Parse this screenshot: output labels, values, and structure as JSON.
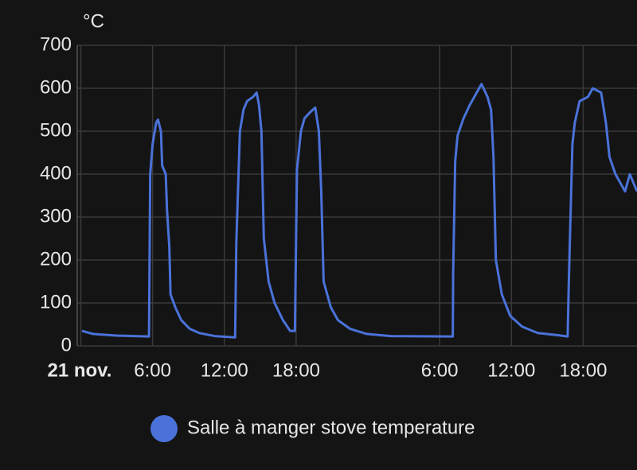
{
  "chart_data": {
    "type": "line",
    "y_label": "°C",
    "xlim": [
      -0.3,
      46.5
    ],
    "ylim": [
      0,
      700
    ],
    "yticks": [
      0,
      100,
      200,
      300,
      400,
      500,
      600,
      700
    ],
    "xticks": [
      {
        "value": 0,
        "label": "21 nov."
      },
      {
        "value": 6,
        "label": "6:00"
      },
      {
        "value": 12,
        "label": "12:00"
      },
      {
        "value": 18,
        "label": "18:00"
      },
      {
        "value": 30,
        "label": "6:00"
      },
      {
        "value": 36,
        "label": "12:00"
      },
      {
        "value": 42,
        "label": "18:00"
      }
    ],
    "grid": true,
    "series": [
      {
        "name": "Salle à manger stove temperature",
        "color": "#4a72d9",
        "x": [
          0.1,
          1,
          3,
          5.7,
          5.8,
          6.0,
          6.3,
          6.45,
          6.7,
          6.8,
          7.1,
          7.2,
          7.4,
          7.5,
          7.9,
          8.4,
          9.1,
          9.9,
          11.2,
          12.9,
          13.0,
          13.3,
          13.6,
          13.9,
          14.4,
          14.7,
          14.9,
          15.1,
          15.3,
          15.7,
          16.2,
          16.9,
          17.5,
          17.9,
          18.07,
          18.4,
          18.7,
          19.2,
          19.6,
          19.9,
          20.1,
          20.3,
          20.9,
          21.5,
          22.5,
          23.9,
          25.9,
          31.1,
          31.13,
          31.3,
          31.5,
          32.0,
          32.5,
          33.1,
          33.5,
          34.0,
          34.3,
          34.5,
          34.7,
          35.2,
          35.9,
          36.9,
          38.2,
          39.9,
          40.7,
          40.8,
          41.1,
          41.3,
          41.7,
          42.4,
          42.8,
          43.5,
          43.9,
          44.2,
          44.7,
          45.1,
          45.5,
          45.9,
          46.5
        ],
        "values": [
          35,
          28,
          24,
          22,
          400,
          470,
          520,
          527,
          500,
          420,
          400,
          320,
          230,
          120,
          90,
          60,
          40,
          30,
          23,
          20,
          240,
          500,
          550,
          570,
          580,
          590,
          560,
          500,
          250,
          150,
          100,
          60,
          35,
          35,
          410,
          500,
          530,
          545,
          555,
          500,
          360,
          150,
          90,
          60,
          40,
          28,
          23,
          22,
          170,
          430,
          490,
          530,
          560,
          590,
          610,
          580,
          550,
          440,
          200,
          120,
          70,
          45,
          30,
          25,
          22,
          150,
          470,
          520,
          570,
          580,
          600,
          590,
          520,
          440,
          400,
          380,
          360,
          400,
          360
        ]
      }
    ]
  }
}
